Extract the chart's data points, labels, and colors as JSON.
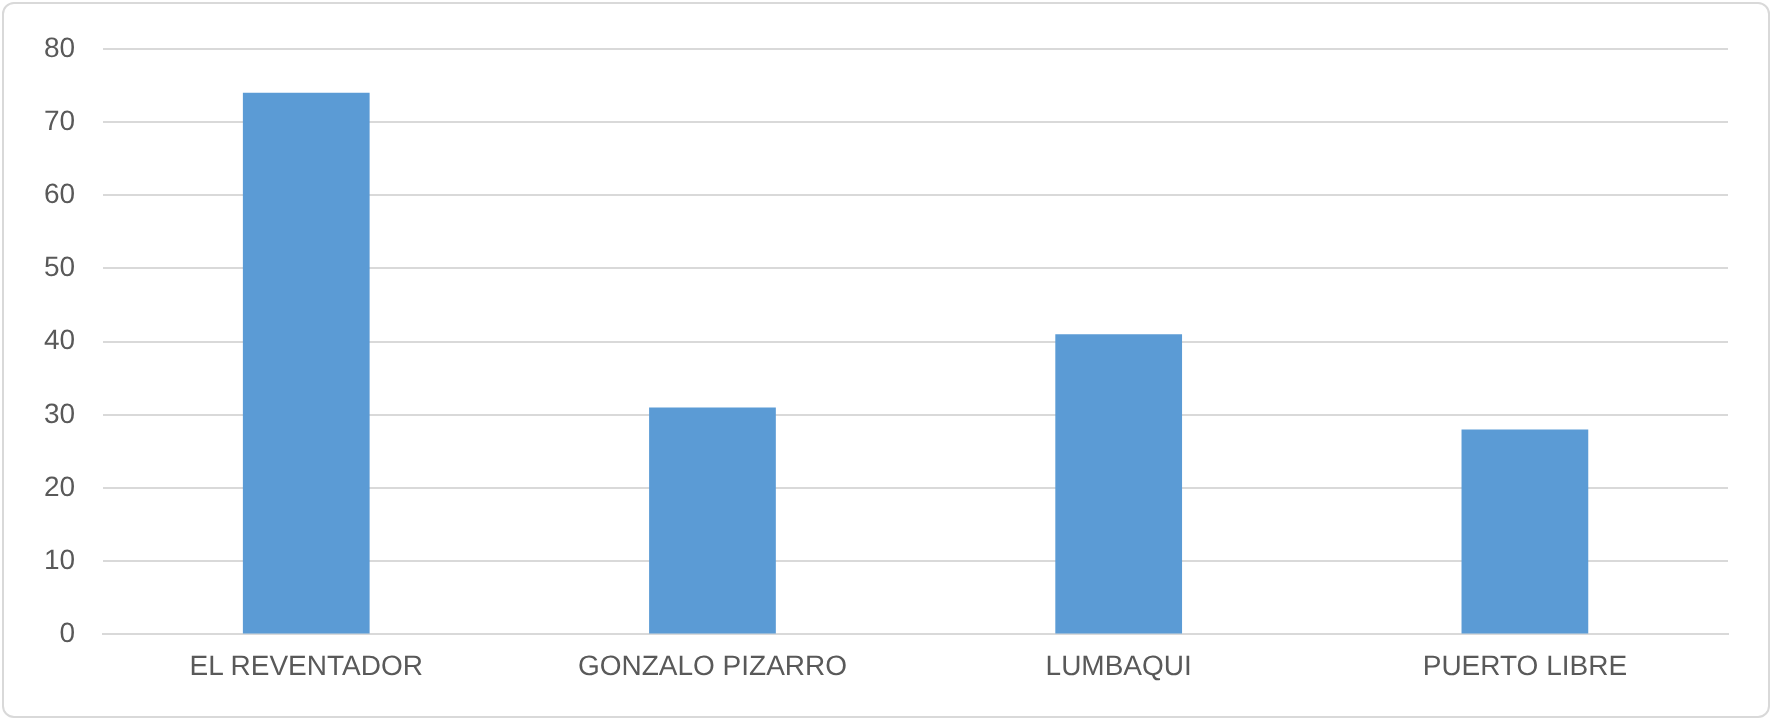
{
  "chart_data": {
    "type": "bar",
    "categories": [
      "EL REVENTADOR",
      "GONZALO PIZARRO",
      "LUMBAQUI",
      "PUERTO LIBRE"
    ],
    "values": [
      74,
      31,
      41,
      28
    ],
    "color": "#5b9bd5",
    "ylim": [
      0,
      80
    ],
    "yticks": [
      0,
      10,
      20,
      30,
      40,
      50,
      60,
      70,
      80
    ],
    "grid": "y",
    "legend": false
  }
}
